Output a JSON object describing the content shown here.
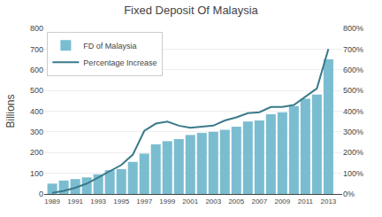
{
  "chart_data": {
    "type": "bar",
    "title": "Fixed Deposit Of Malaysia",
    "ylabel": "Billions",
    "x": [
      1989,
      1990,
      1991,
      1992,
      1993,
      1994,
      1995,
      1996,
      1997,
      1998,
      1999,
      2000,
      2001,
      2002,
      2003,
      2004,
      2005,
      2006,
      2007,
      2008,
      2009,
      2010,
      2011,
      2012,
      2013
    ],
    "series": [
      {
        "name": "FD of Malaysia",
        "type": "bar",
        "color": "#7bbdd0",
        "values": [
          50,
          65,
          72,
          80,
          95,
          115,
          120,
          155,
          195,
          240,
          255,
          265,
          285,
          295,
          300,
          310,
          325,
          350,
          355,
          385,
          395,
          425,
          460,
          480,
          650
        ]
      },
      {
        "name": "Percentage Increase",
        "type": "line",
        "color": "#3a7a8a",
        "axis": "y2",
        "values": [
          5,
          15,
          30,
          50,
          80,
          110,
          140,
          190,
          305,
          340,
          350,
          330,
          320,
          325,
          330,
          355,
          370,
          390,
          395,
          420,
          420,
          430,
          470,
          510,
          700
        ]
      }
    ],
    "xlim": [
      1988.3,
      2014.2
    ],
    "xticks": [
      1989,
      1991,
      1993,
      1995,
      1997,
      1999,
      2001,
      2003,
      2005,
      2007,
      2009,
      2011,
      2013
    ],
    "ylim": [
      0,
      800
    ],
    "yticks": [
      0,
      100,
      200,
      300,
      400,
      500,
      600,
      700,
      800
    ],
    "y2lim": [
      0,
      800
    ],
    "y2ticks": [
      {
        "value": 0,
        "label": "0%"
      },
      {
        "value": 100,
        "label": "100%"
      },
      {
        "value": 200,
        "label": "200%"
      },
      {
        "value": 300,
        "label": "300%"
      },
      {
        "value": 400,
        "label": "400%"
      },
      {
        "value": 500,
        "label": "500%"
      },
      {
        "value": 600,
        "label": "600%"
      },
      {
        "value": 700,
        "label": "700%"
      },
      {
        "value": 800,
        "label": "800%"
      }
    ],
    "grid": true,
    "legend": "upper left"
  }
}
